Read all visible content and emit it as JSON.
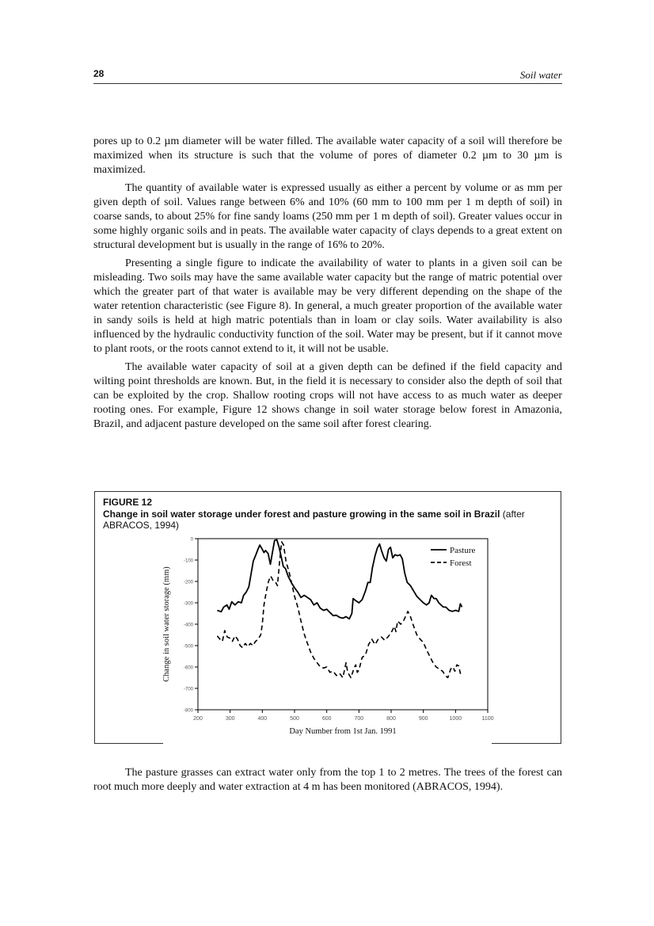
{
  "header": {
    "page_number": "28",
    "running_title": "Soil water"
  },
  "paragraphs": [
    "pores up to 0.2 µm diameter will be water filled. The available water capacity of a soil will therefore be maximized when its structure is such that the volume of pores of diameter 0.2 µm to 30 µm is maximized.",
    "The quantity of available water is expressed usually as either a percent by volume or as mm per given depth of soil. Values range between 6% and 10% (60 mm to 100 mm per 1 m depth of soil) in coarse sands, to about 25% for fine sandy loams (250 mm per 1 m depth of soil). Greater values occur in some highly organic soils and in peats. The available water capacity of clays depends to a great extent on structural development but is usually in the range of 16% to 20%.",
    "Presenting a single figure to indicate the availability of water to plants in a given soil can be misleading. Two soils may have the same available water capacity but the range of matric potential over which the greater part of that water is available may be very different depending on the shape of the water retention characteristic (see Figure 8). In general, a much greater proportion of the available water in sandy soils is held at high matric potentials than in loam or clay soils. Water availability is also influenced by the hydraulic conductivity function of the soil. Water may be present, but if it cannot move to plant roots, or the roots cannot extend to it, it will not be usable.",
    "The available water capacity of soil at a given depth can be defined if the field capacity and wilting point thresholds are known. But, in the field it is necessary to consider also the depth of soil that can be exploited by the crop. Shallow rooting crops will not have access to as much water as deeper rooting ones. For example, Figure 12 shows change in soil water storage below forest in Amazonia, Brazil, and adjacent pasture developed on the same soil after forest clearing."
  ],
  "figure": {
    "number": "FIGURE 12",
    "caption_bold": "Change in soil water storage under forest and pasture growing in the same soil in Brazil",
    "caption_rest": " (after ABRACOS, 1994)"
  },
  "after_paragraph": "The pasture grasses can extract water only from the top 1 to 2 metres. The trees of the forest can root much more deeply and water extraction at 4 m has been monitored  (ABRACOS, 1994).",
  "chart_data": {
    "type": "line",
    "xlabel": "Day Number from 1st Jan. 1991",
    "ylabel": "Change in soil water storage (mm)",
    "xlim": [
      200,
      1100
    ],
    "ylim": [
      -800,
      0
    ],
    "x_ticks": [
      200,
      300,
      400,
      500,
      600,
      700,
      800,
      900,
      1000,
      1100
    ],
    "y_ticks": [
      0,
      -100,
      -200,
      -300,
      -400,
      -500,
      -600,
      -700,
      -800
    ],
    "x_tick_labels": [
      "200",
      "300",
      "400",
      "500",
      "600",
      "700",
      "800",
      "900",
      "1000",
      "1100"
    ],
    "y_tick_labels": [
      "0",
      "-100",
      "-200",
      "-300",
      "-400",
      "-500",
      "-600",
      "-700",
      "-800"
    ],
    "legend_position": "top-right",
    "grid": false,
    "series": [
      {
        "name": "Pasture",
        "style": "solid",
        "color": "#000000",
        "points": [
          [
            260,
            -335
          ],
          [
            272,
            -342
          ],
          [
            280,
            -320
          ],
          [
            290,
            -310
          ],
          [
            297,
            -330
          ],
          [
            305,
            -295
          ],
          [
            315,
            -310
          ],
          [
            325,
            -295
          ],
          [
            335,
            -300
          ],
          [
            342,
            -265
          ],
          [
            350,
            -250
          ],
          [
            358,
            -225
          ],
          [
            365,
            -165
          ],
          [
            372,
            -105
          ],
          [
            380,
            -75
          ],
          [
            385,
            -55
          ],
          [
            392,
            -30
          ],
          [
            398,
            -45
          ],
          [
            405,
            -65
          ],
          [
            410,
            -55
          ],
          [
            418,
            -70
          ],
          [
            425,
            -120
          ],
          [
            432,
            -60
          ],
          [
            438,
            -8
          ],
          [
            445,
            -5
          ],
          [
            452,
            -40
          ],
          [
            458,
            -80
          ],
          [
            465,
            -130
          ],
          [
            472,
            -140
          ],
          [
            480,
            -175
          ],
          [
            490,
            -205
          ],
          [
            500,
            -230
          ],
          [
            510,
            -250
          ],
          [
            520,
            -275
          ],
          [
            530,
            -265
          ],
          [
            540,
            -275
          ],
          [
            550,
            -285
          ],
          [
            560,
            -310
          ],
          [
            570,
            -300
          ],
          [
            580,
            -325
          ],
          [
            590,
            -335
          ],
          [
            600,
            -330
          ],
          [
            610,
            -345
          ],
          [
            620,
            -360
          ],
          [
            630,
            -358
          ],
          [
            640,
            -368
          ],
          [
            650,
            -372
          ],
          [
            660,
            -365
          ],
          [
            670,
            -375
          ],
          [
            678,
            -350
          ],
          [
            682,
            -280
          ],
          [
            690,
            -290
          ],
          [
            700,
            -300
          ],
          [
            710,
            -285
          ],
          [
            720,
            -245
          ],
          [
            728,
            -205
          ],
          [
            735,
            -205
          ],
          [
            742,
            -135
          ],
          [
            750,
            -80
          ],
          [
            757,
            -45
          ],
          [
            764,
            -25
          ],
          [
            770,
            -55
          ],
          [
            778,
            -90
          ],
          [
            785,
            -105
          ],
          [
            792,
            -50
          ],
          [
            798,
            -40
          ],
          [
            805,
            -90
          ],
          [
            812,
            -75
          ],
          [
            820,
            -80
          ],
          [
            828,
            -75
          ],
          [
            835,
            -95
          ],
          [
            842,
            -160
          ],
          [
            850,
            -205
          ],
          [
            860,
            -220
          ],
          [
            870,
            -245
          ],
          [
            880,
            -270
          ],
          [
            890,
            -285
          ],
          [
            900,
            -300
          ],
          [
            910,
            -310
          ],
          [
            918,
            -300
          ],
          [
            925,
            -265
          ],
          [
            933,
            -280
          ],
          [
            940,
            -280
          ],
          [
            948,
            -300
          ],
          [
            955,
            -310
          ],
          [
            962,
            -320
          ],
          [
            970,
            -320
          ],
          [
            980,
            -335
          ],
          [
            990,
            -340
          ],
          [
            1000,
            -335
          ],
          [
            1010,
            -340
          ],
          [
            1015,
            -305
          ],
          [
            1020,
            -320
          ]
        ]
      },
      {
        "name": "Forest",
        "style": "dashed",
        "color": "#000000",
        "points": [
          [
            260,
            -455
          ],
          [
            268,
            -470
          ],
          [
            276,
            -480
          ],
          [
            283,
            -430
          ],
          [
            291,
            -460
          ],
          [
            299,
            -465
          ],
          [
            307,
            -480
          ],
          [
            315,
            -455
          ],
          [
            323,
            -470
          ],
          [
            331,
            -500
          ],
          [
            339,
            -510
          ],
          [
            347,
            -490
          ],
          [
            355,
            -505
          ],
          [
            363,
            -490
          ],
          [
            371,
            -500
          ],
          [
            379,
            -480
          ],
          [
            387,
            -470
          ],
          [
            395,
            -450
          ],
          [
            400,
            -400
          ],
          [
            405,
            -310
          ],
          [
            412,
            -250
          ],
          [
            419,
            -200
          ],
          [
            426,
            -175
          ],
          [
            433,
            -195
          ],
          [
            440,
            -200
          ],
          [
            447,
            -220
          ],
          [
            454,
            -100
          ],
          [
            460,
            -15
          ],
          [
            466,
            -30
          ],
          [
            474,
            -110
          ],
          [
            482,
            -150
          ],
          [
            490,
            -200
          ],
          [
            500,
            -270
          ],
          [
            510,
            -320
          ],
          [
            520,
            -385
          ],
          [
            530,
            -445
          ],
          [
            540,
            -490
          ],
          [
            550,
            -530
          ],
          [
            560,
            -560
          ],
          [
            570,
            -580
          ],
          [
            580,
            -600
          ],
          [
            590,
            -605
          ],
          [
            600,
            -600
          ],
          [
            610,
            -625
          ],
          [
            620,
            -620
          ],
          [
            630,
            -640
          ],
          [
            640,
            -630
          ],
          [
            650,
            -650
          ],
          [
            660,
            -580
          ],
          [
            665,
            -625
          ],
          [
            675,
            -650
          ],
          [
            685,
            -605
          ],
          [
            690,
            -590
          ],
          [
            695,
            -625
          ],
          [
            700,
            -615
          ],
          [
            710,
            -555
          ],
          [
            720,
            -545
          ],
          [
            730,
            -495
          ],
          [
            740,
            -470
          ],
          [
            750,
            -495
          ],
          [
            760,
            -470
          ],
          [
            770,
            -460
          ],
          [
            780,
            -475
          ],
          [
            790,
            -460
          ],
          [
            800,
            -440
          ],
          [
            810,
            -410
          ],
          [
            815,
            -435
          ],
          [
            820,
            -385
          ],
          [
            830,
            -400
          ],
          [
            838,
            -385
          ],
          [
            846,
            -360
          ],
          [
            852,
            -340
          ],
          [
            860,
            -365
          ],
          [
            870,
            -410
          ],
          [
            880,
            -450
          ],
          [
            890,
            -470
          ],
          [
            900,
            -485
          ],
          [
            910,
            -520
          ],
          [
            920,
            -550
          ],
          [
            930,
            -580
          ],
          [
            940,
            -600
          ],
          [
            950,
            -610
          ],
          [
            960,
            -620
          ],
          [
            968,
            -640
          ],
          [
            976,
            -650
          ],
          [
            985,
            -610
          ],
          [
            992,
            -600
          ],
          [
            998,
            -620
          ],
          [
            1004,
            -590
          ],
          [
            1010,
            -595
          ],
          [
            1015,
            -630
          ],
          [
            1020,
            -620
          ]
        ]
      }
    ]
  }
}
